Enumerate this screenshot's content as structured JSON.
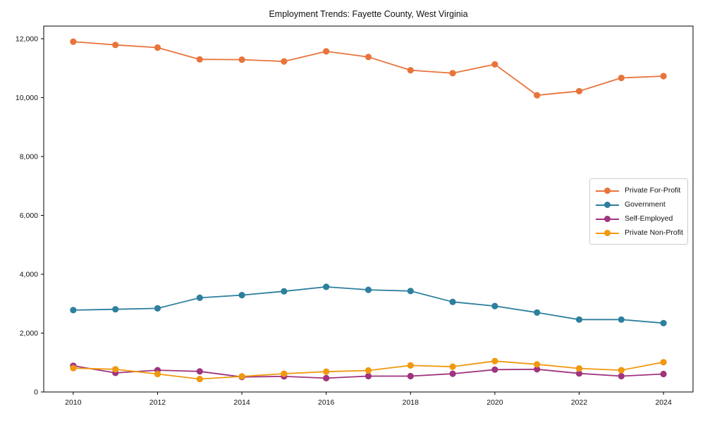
{
  "title": "Employment Trends: Fayette County, West Virginia",
  "colors": {
    "private_for_profit": "#e8743b",
    "government": "#2d7f9e",
    "self_employed": "#a0347e",
    "private_non_profit": "#f0980f",
    "axis": "#000000",
    "legend_border": "#cccccc",
    "background": "#ffffff"
  },
  "chart_data": {
    "type": "line",
    "title": "Employment Trends: Fayette County, West Virginia",
    "xlabel": "",
    "ylabel": "",
    "grid": false,
    "legend_position": "center right",
    "x": [
      2010,
      2011,
      2012,
      2013,
      2014,
      2015,
      2016,
      2017,
      2018,
      2019,
      2020,
      2021,
      2022,
      2023,
      2024
    ],
    "series": [
      {
        "name": "Private For-Profit",
        "color": "#e8743b",
        "values": [
          11900,
          11790,
          11700,
          11300,
          11290,
          11230,
          11570,
          11380,
          10930,
          10830,
          11130,
          10080,
          10220,
          10670,
          10730
        ]
      },
      {
        "name": "Government",
        "color": "#2d7f9e",
        "values": [
          2780,
          2810,
          2840,
          3200,
          3290,
          3420,
          3570,
          3470,
          3430,
          3060,
          2920,
          2700,
          2460,
          2460,
          2340
        ]
      },
      {
        "name": "Self-Employed",
        "color": "#a0347e",
        "values": [
          890,
          650,
          740,
          700,
          510,
          530,
          470,
          540,
          540,
          620,
          760,
          770,
          630,
          540,
          610
        ]
      },
      {
        "name": "Private Non-Profit",
        "color": "#f0980f",
        "values": [
          810,
          770,
          610,
          440,
          530,
          620,
          690,
          730,
          900,
          860,
          1050,
          940,
          800,
          740,
          1010
        ]
      }
    ],
    "x_ticks": [
      2010,
      2012,
      2014,
      2016,
      2018,
      2020,
      2022,
      2024
    ],
    "y_ticks": [
      0,
      2000,
      4000,
      6000,
      8000,
      10000,
      12000
    ],
    "y_tick_labels": [
      "0",
      "2,000",
      "4,000",
      "6,000",
      "8,000",
      "10,000",
      "12,000"
    ],
    "xlim": [
      2009.3,
      2024.7
    ],
    "ylim": [
      0,
      12430
    ]
  }
}
